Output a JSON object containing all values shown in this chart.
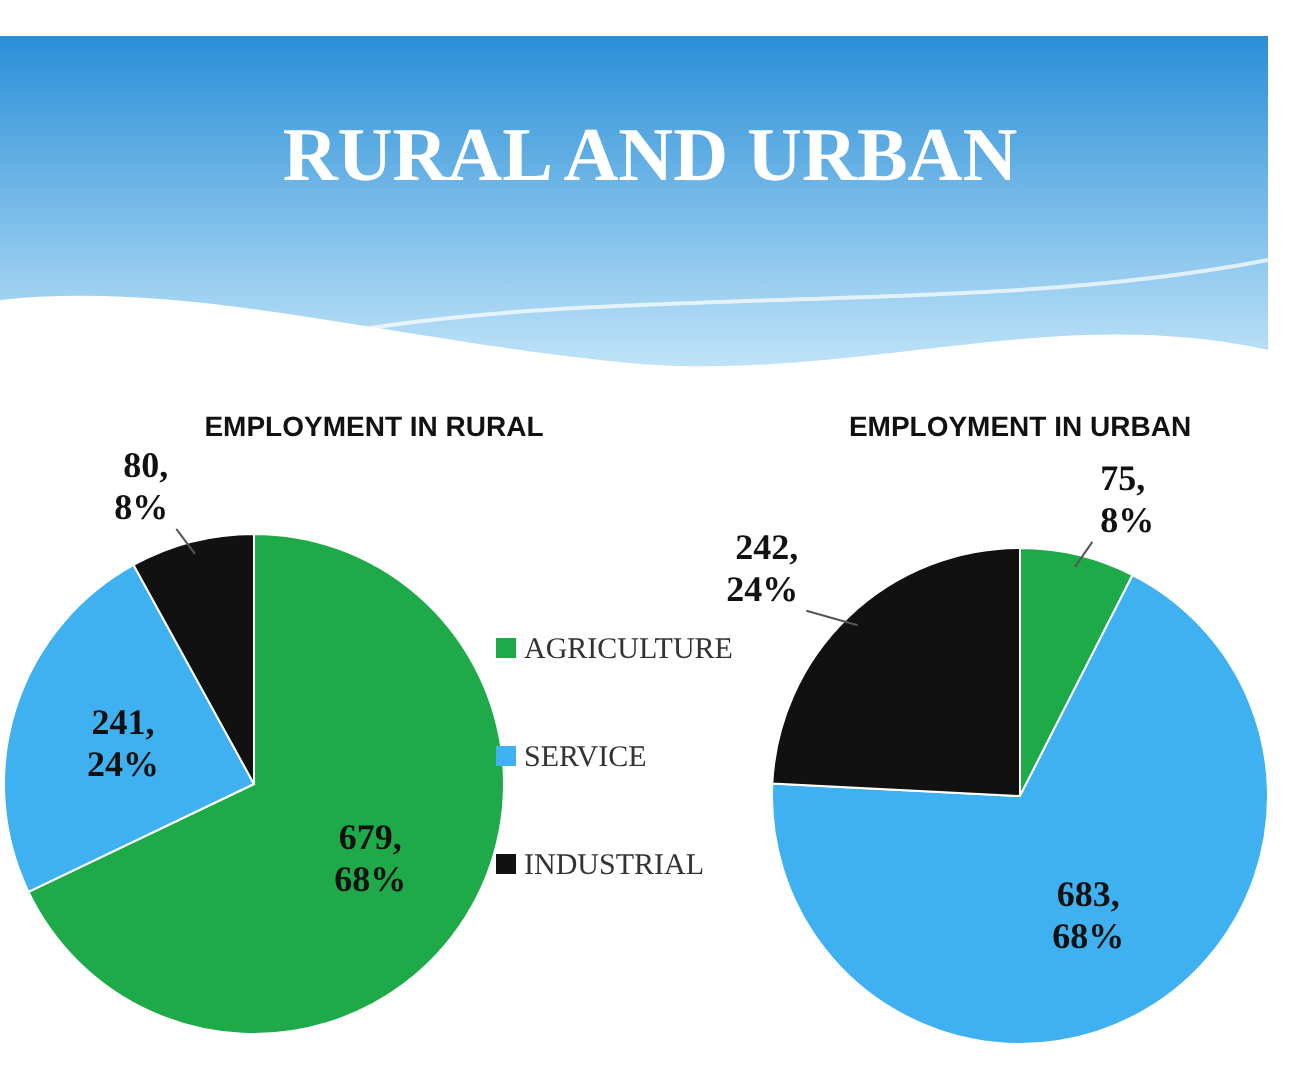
{
  "chart_data": [
    {
      "type": "pie",
      "title": "EMPLOYMENT IN RURAL",
      "annotations": [
        "RURAL AND URBAN"
      ],
      "categories": [
        "AGRICULTURE",
        "SERVICE",
        "INDUSTRIAL"
      ],
      "values": [
        679,
        241,
        80
      ],
      "colors": [
        "#1faa4a",
        "#3fb1f0",
        "#111111"
      ],
      "value_labels": [
        "679, 68%",
        "241, 24%",
        "80, 8%"
      ],
      "legend": "right"
    },
    {
      "type": "pie",
      "title": "EMPLOYMENT IN URBAN",
      "categories": [
        null,
        null,
        null
      ],
      "values": [
        75,
        683,
        242
      ],
      "colors": [
        "#1faa4a",
        "#3fb1f0",
        "#111111"
      ],
      "value_labels": [
        "75, 8%",
        "683, 68%",
        "242, 24%"
      ]
    }
  ]
}
